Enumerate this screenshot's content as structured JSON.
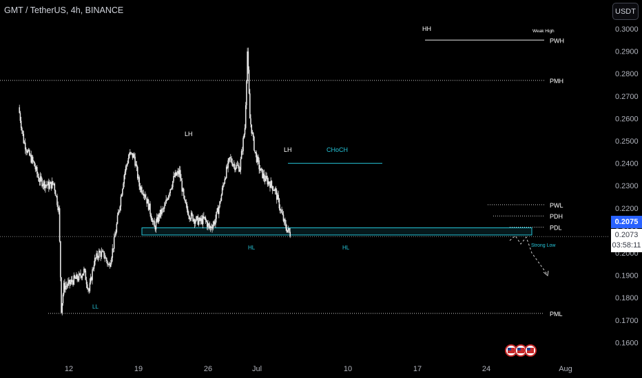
{
  "header": {
    "title": "GMT / TetherUS, 4h, BINANCE",
    "currency_button": "USDT"
  },
  "price_tags": {
    "current": "0.2075",
    "last": "0.2073",
    "countdown": "03:58:11"
  },
  "colors": {
    "background": "#000000",
    "candle": "#e6e6e6",
    "annotation": "#26c6da",
    "level_line": "#cfcfcf",
    "price_tag": "#2962ff"
  },
  "chart_data": {
    "type": "candlestick",
    "y_axis": {
      "ticks": [
        "0.3000",
        "0.2900",
        "0.2800",
        "0.2700",
        "0.2600",
        "0.2500",
        "0.2400",
        "0.2300",
        "0.2200",
        "0.2100",
        "0.2000",
        "0.1900",
        "0.1800",
        "0.1700",
        "0.1600"
      ],
      "range": [
        0.1555,
        0.302
      ]
    },
    "x_axis": {
      "ticks": [
        "12",
        "19",
        "26",
        "Jul",
        "10",
        "17",
        "24",
        "Aug"
      ]
    },
    "trend_points": [
      {
        "date": "Jun 2",
        "price": 0.265
      },
      {
        "date": "Jun 3",
        "price": 0.25
      },
      {
        "date": "Jun 4",
        "price": 0.244
      },
      {
        "date": "Jun 5",
        "price": 0.24
      },
      {
        "date": "Jun 6",
        "price": 0.233
      },
      {
        "date": "Jun 7",
        "price": 0.231
      },
      {
        "date": "Jun 8",
        "price": 0.23
      },
      {
        "date": "Jun 9",
        "price": 0.231
      },
      {
        "date": "Jun 10",
        "price": 0.219
      },
      {
        "date": "Jun 10.5",
        "price": 0.175
      },
      {
        "date": "Jun 11",
        "price": 0.185
      },
      {
        "date": "Jun 12",
        "price": 0.186
      },
      {
        "date": "Jun 13",
        "price": 0.188
      },
      {
        "date": "Jun 14",
        "price": 0.189
      },
      {
        "date": "Jun 15",
        "price": 0.192
      },
      {
        "date": "Jun 16",
        "price": 0.183
      },
      {
        "date": "Jun 17",
        "price": 0.196
      },
      {
        "date": "Jun 18",
        "price": 0.2
      },
      {
        "date": "Jun 19",
        "price": 0.199
      },
      {
        "date": "Jun 20",
        "price": 0.194
      },
      {
        "date": "Jun 21",
        "price": 0.205
      },
      {
        "date": "Jun 22",
        "price": 0.22
      },
      {
        "date": "Jun 23",
        "price": 0.235
      },
      {
        "date": "Jun 24",
        "price": 0.244
      },
      {
        "date": "Jun 25",
        "price": 0.243
      },
      {
        "date": "Jun 26",
        "price": 0.23
      },
      {
        "date": "Jun 27",
        "price": 0.227
      },
      {
        "date": "Jun 28",
        "price": 0.22
      },
      {
        "date": "Jun 29",
        "price": 0.211
      },
      {
        "date": "Jun 30",
        "price": 0.217
      },
      {
        "date": "Jul 1",
        "price": 0.22
      },
      {
        "date": "Jul 2",
        "price": 0.228
      },
      {
        "date": "Jul 3",
        "price": 0.234
      },
      {
        "date": "Jul 4",
        "price": 0.236
      },
      {
        "date": "Jul 5",
        "price": 0.222
      },
      {
        "date": "Jul 6",
        "price": 0.217
      },
      {
        "date": "Jul 7",
        "price": 0.215
      },
      {
        "date": "Jul 8",
        "price": 0.214
      },
      {
        "date": "Jul 9",
        "price": 0.215
      },
      {
        "date": "Jul 10",
        "price": 0.211
      },
      {
        "date": "Jul 11",
        "price": 0.214
      },
      {
        "date": "Jul 12",
        "price": 0.222
      },
      {
        "date": "Jul 13",
        "price": 0.234
      },
      {
        "date": "Jul 14",
        "price": 0.242
      },
      {
        "date": "Jul 15",
        "price": 0.239
      },
      {
        "date": "Jul 16",
        "price": 0.238
      },
      {
        "date": "Jul 17",
        "price": 0.256
      },
      {
        "date": "Jul 17.5",
        "price": 0.29
      },
      {
        "date": "Jul 18",
        "price": 0.26
      },
      {
        "date": "Jul 19",
        "price": 0.245
      },
      {
        "date": "Jul 20",
        "price": 0.237
      },
      {
        "date": "Jul 21",
        "price": 0.233
      },
      {
        "date": "Jul 22",
        "price": 0.231
      },
      {
        "date": "Jul 23",
        "price": 0.228
      },
      {
        "date": "Jul 24",
        "price": 0.22
      },
      {
        "date": "Jul 25",
        "price": 0.212
      },
      {
        "date": "Jul 26",
        "price": 0.2085
      }
    ],
    "horizontal_levels": [
      {
        "label": "PWH",
        "price": 0.295
      },
      {
        "label": "PMH",
        "price": 0.277
      },
      {
        "label": "PWL",
        "price": 0.2215
      },
      {
        "label": "PDH",
        "price": 0.2165
      },
      {
        "label": "PDL",
        "price": 0.2115
      },
      {
        "label": "PML",
        "price": 0.173
      }
    ],
    "annotations": [
      {
        "text": "Weak High"
      },
      {
        "text": "HH"
      },
      {
        "text": "LH"
      },
      {
        "text": "LH"
      },
      {
        "text": "CHoCH"
      },
      {
        "text": "HL"
      },
      {
        "text": "HL"
      },
      {
        "text": "LL"
      },
      {
        "text": "Strong Low"
      }
    ]
  }
}
